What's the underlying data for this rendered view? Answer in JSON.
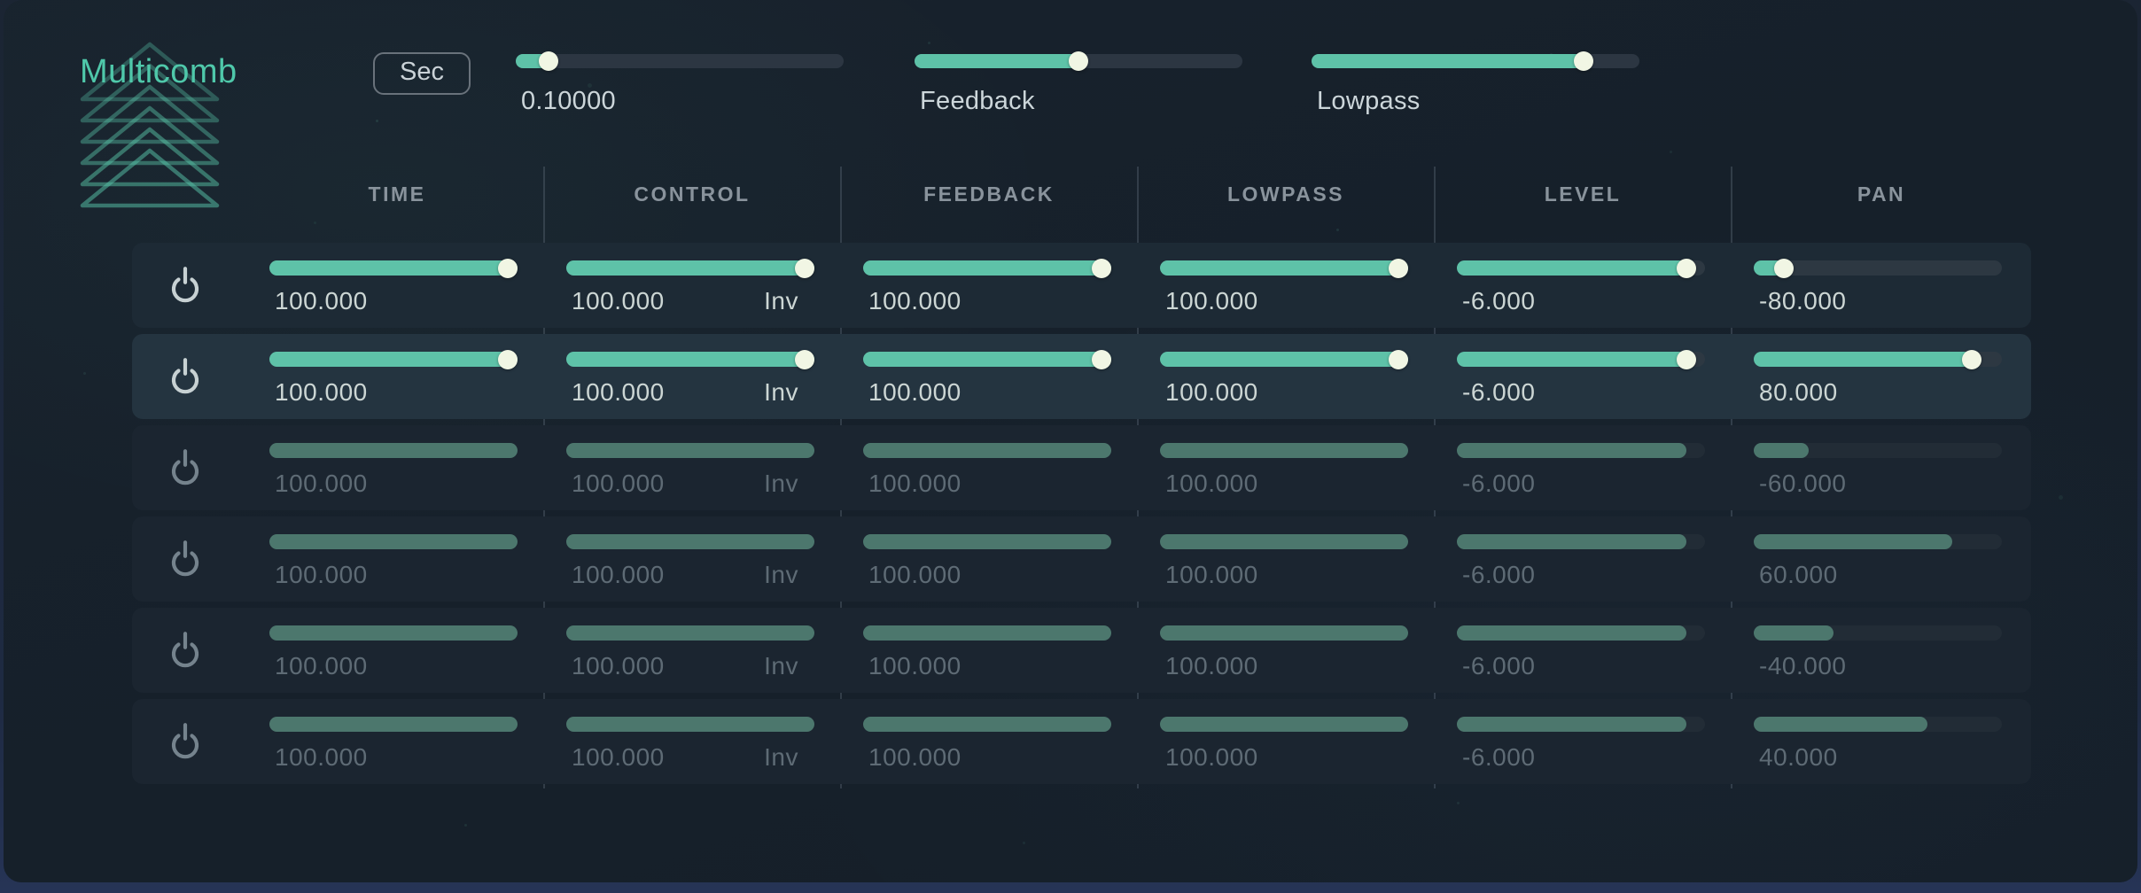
{
  "app": {
    "title": "Multicomb",
    "accent_color": "#5ec2a8",
    "dim_accent_color": "#4c776d",
    "thumb_color": "#f1f6e4",
    "background_color": "#16202a",
    "title_color": "#4fc8aa"
  },
  "topbar": {
    "sec_button_label": "Sec",
    "sliders": [
      {
        "name": "time-value",
        "label": "0.10000",
        "fill": 0.1
      },
      {
        "name": "feedback",
        "label": "Feedback",
        "fill": 0.5
      },
      {
        "name": "lowpass",
        "label": "Lowpass",
        "fill": 0.83
      }
    ]
  },
  "table": {
    "columns": [
      "TIME",
      "CONTROL",
      "FEEDBACK",
      "LOWPASS",
      "LEVEL",
      "PAN"
    ],
    "rows": [
      {
        "active": true,
        "highlighted": false,
        "time": {
          "value": "100.000",
          "fill": 1
        },
        "control": {
          "value": "100.000",
          "tag": "Inv",
          "fill": 1
        },
        "feedback": {
          "value": "100.000",
          "fill": 1
        },
        "lowpass": {
          "value": "100.000",
          "fill": 1
        },
        "level": {
          "value": "-6.000",
          "fill": 0.925
        },
        "pan": {
          "value": "-80.000",
          "fill": 0.12
        }
      },
      {
        "active": true,
        "highlighted": true,
        "time": {
          "value": "100.000",
          "fill": 1
        },
        "control": {
          "value": "100.000",
          "tag": "Inv",
          "fill": 1
        },
        "feedback": {
          "value": "100.000",
          "fill": 1
        },
        "lowpass": {
          "value": "100.000",
          "fill": 1
        },
        "level": {
          "value": "-6.000",
          "fill": 0.925
        },
        "pan": {
          "value": "80.000",
          "fill": 0.88
        }
      },
      {
        "active": false,
        "highlighted": false,
        "time": {
          "value": "100.000",
          "fill": 1
        },
        "control": {
          "value": "100.000",
          "tag": "Inv",
          "fill": 1
        },
        "feedback": {
          "value": "100.000",
          "fill": 1
        },
        "lowpass": {
          "value": "100.000",
          "fill": 1
        },
        "level": {
          "value": "-6.000",
          "fill": 0.925
        },
        "pan": {
          "value": "-60.000",
          "fill": 0.22
        }
      },
      {
        "active": false,
        "highlighted": false,
        "time": {
          "value": "100.000",
          "fill": 1
        },
        "control": {
          "value": "100.000",
          "tag": "Inv",
          "fill": 1
        },
        "feedback": {
          "value": "100.000",
          "fill": 1
        },
        "lowpass": {
          "value": "100.000",
          "fill": 1
        },
        "level": {
          "value": "-6.000",
          "fill": 0.925
        },
        "pan": {
          "value": "60.000",
          "fill": 0.8
        }
      },
      {
        "active": false,
        "highlighted": false,
        "time": {
          "value": "100.000",
          "fill": 1
        },
        "control": {
          "value": "100.000",
          "tag": "Inv",
          "fill": 1
        },
        "feedback": {
          "value": "100.000",
          "fill": 1
        },
        "lowpass": {
          "value": "100.000",
          "fill": 1
        },
        "level": {
          "value": "-6.000",
          "fill": 0.925
        },
        "pan": {
          "value": "-40.000",
          "fill": 0.32
        }
      },
      {
        "active": false,
        "highlighted": false,
        "time": {
          "value": "100.000",
          "fill": 1
        },
        "control": {
          "value": "100.000",
          "tag": "Inv",
          "fill": 1
        },
        "feedback": {
          "value": "100.000",
          "fill": 1
        },
        "lowpass": {
          "value": "100.000",
          "fill": 1
        },
        "level": {
          "value": "-6.000",
          "fill": 0.925
        },
        "pan": {
          "value": "40.000",
          "fill": 0.7
        }
      }
    ]
  }
}
